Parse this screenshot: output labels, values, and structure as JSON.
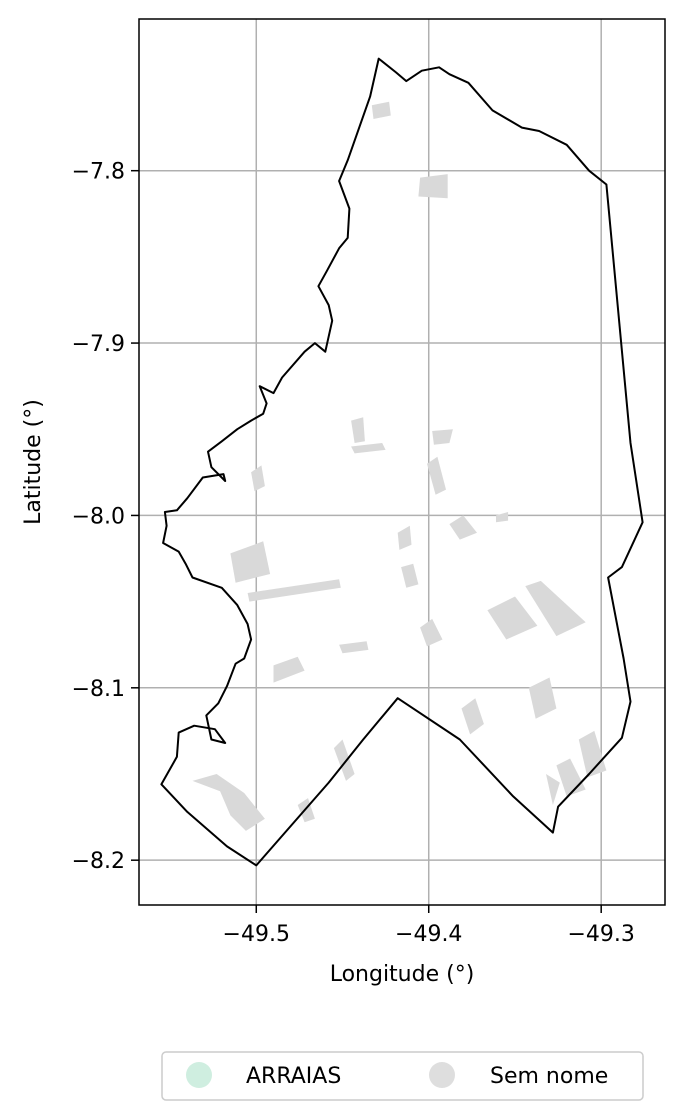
{
  "chart_data": {
    "type": "map",
    "xlabel": "Longitude (°)",
    "ylabel": "Latitude (°)",
    "xlim": [
      -49.568,
      -49.263
    ],
    "ylim": [
      -8.226,
      -7.712
    ],
    "x_ticks": [
      -49.5,
      -49.4,
      -49.3
    ],
    "y_ticks": [
      -7.8,
      -7.9,
      -8.0,
      -8.1,
      -8.2
    ],
    "x_tick_labels": [
      "−49.5",
      "−49.4",
      "−49.3"
    ],
    "y_tick_labels": [
      "−7.8",
      "−7.9",
      "−8.0",
      "−8.1",
      "−8.2"
    ],
    "grid": true,
    "boundary_color": "#000000",
    "feature_color": "#d9d9d9",
    "legend": {
      "placement": "bottom-center",
      "entries": [
        {
          "label": "ARRAIAS",
          "color": "#cfeee0"
        },
        {
          "label": "Sem nome",
          "color": "#dedede"
        }
      ]
    },
    "boundary": [
      [
        -49.429,
        -7.735
      ],
      [
        -49.419,
        -7.743
      ],
      [
        -49.413,
        -7.748
      ],
      [
        -49.404,
        -7.742
      ],
      [
        -49.394,
        -7.74
      ],
      [
        -49.388,
        -7.744
      ],
      [
        -49.377,
        -7.749
      ],
      [
        -49.363,
        -7.765
      ],
      [
        -49.346,
        -7.775
      ],
      [
        -49.336,
        -7.777
      ],
      [
        -49.32,
        -7.785
      ],
      [
        -49.307,
        -7.8
      ],
      [
        -49.297,
        -7.808
      ],
      [
        -49.283,
        -7.958
      ],
      [
        -49.276,
        -8.004
      ],
      [
        -49.288,
        -8.03
      ],
      [
        -49.296,
        -8.036
      ],
      [
        -49.287,
        -8.083
      ],
      [
        -49.283,
        -8.108
      ],
      [
        -49.288,
        -8.129
      ],
      [
        -49.307,
        -8.15
      ],
      [
        -49.325,
        -8.169
      ],
      [
        -49.328,
        -8.184
      ],
      [
        -49.351,
        -8.163
      ],
      [
        -49.382,
        -8.13
      ],
      [
        -49.418,
        -8.106
      ],
      [
        -49.438,
        -8.13
      ],
      [
        -49.458,
        -8.155
      ],
      [
        -49.5,
        -8.203
      ],
      [
        -49.517,
        -8.192
      ],
      [
        -49.54,
        -8.172
      ],
      [
        -49.555,
        -8.156
      ],
      [
        -49.546,
        -8.14
      ],
      [
        -49.545,
        -8.126
      ],
      [
        -49.536,
        -8.122
      ],
      [
        -49.524,
        -8.124
      ],
      [
        -49.518,
        -8.132
      ],
      [
        -49.526,
        -8.13
      ],
      [
        -49.529,
        -8.116
      ],
      [
        -49.522,
        -8.109
      ],
      [
        -49.517,
        -8.099
      ],
      [
        -49.512,
        -8.086
      ],
      [
        -49.507,
        -8.083
      ],
      [
        -49.503,
        -8.072
      ],
      [
        -49.505,
        -8.063
      ],
      [
        -49.511,
        -8.052
      ],
      [
        -49.52,
        -8.042
      ],
      [
        -49.537,
        -8.036
      ],
      [
        -49.541,
        -8.028
      ],
      [
        -49.545,
        -8.021
      ],
      [
        -49.554,
        -8.016
      ],
      [
        -49.552,
        -8.006
      ],
      [
        -49.553,
        -7.998
      ],
      [
        -49.546,
        -7.997
      ],
      [
        -49.54,
        -7.99
      ],
      [
        -49.531,
        -7.978
      ],
      [
        -49.519,
        -7.976
      ],
      [
        -49.518,
        -7.98
      ],
      [
        -49.526,
        -7.972
      ],
      [
        -49.528,
        -7.963
      ],
      [
        -49.52,
        -7.957
      ],
      [
        -49.511,
        -7.95
      ],
      [
        -49.503,
        -7.945
      ],
      [
        -49.496,
        -7.941
      ],
      [
        -49.494,
        -7.935
      ],
      [
        -49.498,
        -7.925
      ],
      [
        -49.49,
        -7.929
      ],
      [
        -49.485,
        -7.92
      ],
      [
        -49.472,
        -7.905
      ],
      [
        -49.466,
        -7.9
      ],
      [
        -49.46,
        -7.905
      ],
      [
        -49.456,
        -7.887
      ],
      [
        -49.458,
        -7.878
      ],
      [
        -49.464,
        -7.867
      ],
      [
        -49.459,
        -7.858
      ],
      [
        -49.452,
        -7.845
      ],
      [
        -49.447,
        -7.839
      ],
      [
        -49.446,
        -7.822
      ],
      [
        -49.452,
        -7.806
      ],
      [
        -49.447,
        -7.794
      ],
      [
        -49.434,
        -7.757
      ],
      [
        -49.429,
        -7.735
      ]
    ],
    "feature_polygons": [
      [
        [
          -49.405,
          -7.804
        ],
        [
          -49.389,
          -7.802
        ],
        [
          -49.389,
          -7.816
        ],
        [
          -49.406,
          -7.815
        ]
      ],
      [
        [
          -49.433,
          -7.762
        ],
        [
          -49.423,
          -7.76
        ],
        [
          -49.422,
          -7.768
        ],
        [
          -49.432,
          -7.77
        ]
      ],
      [
        [
          -49.515,
          -8.022
        ],
        [
          -49.496,
          -8.015
        ],
        [
          -49.492,
          -8.034
        ],
        [
          -49.512,
          -8.039
        ]
      ],
      [
        [
          -49.505,
          -8.045
        ],
        [
          -49.452,
          -8.037
        ],
        [
          -49.451,
          -8.042
        ],
        [
          -49.504,
          -8.05
        ]
      ],
      [
        [
          -49.537,
          -8.154
        ],
        [
          -49.521,
          -8.16
        ],
        [
          -49.515,
          -8.174
        ],
        [
          -49.506,
          -8.183
        ],
        [
          -49.495,
          -8.176
        ],
        [
          -49.507,
          -8.161
        ],
        [
          -49.523,
          -8.15
        ]
      ],
      [
        [
          -49.49,
          -8.087
        ],
        [
          -49.476,
          -8.082
        ],
        [
          -49.472,
          -8.09
        ],
        [
          -49.49,
          -8.097
        ]
      ],
      [
        [
          -49.344,
          -8.041
        ],
        [
          -49.335,
          -8.038
        ],
        [
          -49.309,
          -8.062
        ],
        [
          -49.326,
          -8.07
        ]
      ],
      [
        [
          -49.366,
          -8.055
        ],
        [
          -49.35,
          -8.047
        ],
        [
          -49.337,
          -8.064
        ],
        [
          -49.355,
          -8.072
        ]
      ],
      [
        [
          -49.342,
          -8.1
        ],
        [
          -49.33,
          -8.094
        ],
        [
          -49.326,
          -8.112
        ],
        [
          -49.338,
          -8.118
        ]
      ],
      [
        [
          -49.313,
          -8.13
        ],
        [
          -49.304,
          -8.125
        ],
        [
          -49.297,
          -8.148
        ],
        [
          -49.308,
          -8.152
        ]
      ],
      [
        [
          -49.326,
          -8.145
        ],
        [
          -49.318,
          -8.141
        ],
        [
          -49.309,
          -8.159
        ],
        [
          -49.32,
          -8.163
        ]
      ],
      [
        [
          -49.332,
          -8.15
        ],
        [
          -49.324,
          -8.155
        ],
        [
          -49.328,
          -8.168
        ]
      ],
      [
        [
          -49.381,
          -8.112
        ],
        [
          -49.373,
          -8.106
        ],
        [
          -49.368,
          -8.121
        ],
        [
          -49.376,
          -8.127
        ]
      ],
      [
        [
          -49.398,
          -7.951
        ],
        [
          -49.386,
          -7.95
        ],
        [
          -49.388,
          -7.958
        ],
        [
          -49.397,
          -7.959
        ]
      ],
      [
        [
          -49.401,
          -7.97
        ],
        [
          -49.395,
          -7.966
        ],
        [
          -49.39,
          -7.985
        ],
        [
          -49.396,
          -7.988
        ]
      ],
      [
        [
          -49.388,
          -8.005
        ],
        [
          -49.38,
          -8.0
        ],
        [
          -49.372,
          -8.01
        ],
        [
          -49.382,
          -8.014
        ]
      ],
      [
        [
          -49.445,
          -7.945
        ],
        [
          -49.438,
          -7.943
        ],
        [
          -49.437,
          -7.957
        ],
        [
          -49.443,
          -7.958
        ]
      ],
      [
        [
          -49.445,
          -7.96
        ],
        [
          -49.427,
          -7.958
        ],
        [
          -49.425,
          -7.962
        ],
        [
          -49.443,
          -7.964
        ]
      ],
      [
        [
          -49.452,
          -8.075
        ],
        [
          -49.436,
          -8.073
        ],
        [
          -49.435,
          -8.078
        ],
        [
          -49.45,
          -8.08
        ]
      ],
      [
        [
          -49.405,
          -8.065
        ],
        [
          -49.398,
          -8.06
        ],
        [
          -49.392,
          -8.072
        ],
        [
          -49.401,
          -8.076
        ]
      ],
      [
        [
          -49.455,
          -8.135
        ],
        [
          -49.45,
          -8.13
        ],
        [
          -49.443,
          -8.15
        ],
        [
          -49.448,
          -8.154
        ]
      ],
      [
        [
          -49.476,
          -8.168
        ],
        [
          -49.47,
          -8.164
        ],
        [
          -49.466,
          -8.176
        ],
        [
          -49.472,
          -8.178
        ]
      ],
      [
        [
          -49.361,
          -8.0
        ],
        [
          -49.354,
          -7.998
        ],
        [
          -49.354,
          -8.003
        ],
        [
          -49.361,
          -8.004
        ]
      ],
      [
        [
          -49.418,
          -8.01
        ],
        [
          -49.411,
          -8.006
        ],
        [
          -49.41,
          -8.017
        ],
        [
          -49.417,
          -8.02
        ]
      ],
      [
        [
          -49.503,
          -7.975
        ],
        [
          -49.497,
          -7.971
        ],
        [
          -49.495,
          -7.983
        ],
        [
          -49.501,
          -7.986
        ]
      ],
      [
        [
          -49.416,
          -8.03
        ],
        [
          -49.409,
          -8.028
        ],
        [
          -49.406,
          -8.04
        ],
        [
          -49.413,
          -8.042
        ]
      ]
    ]
  }
}
